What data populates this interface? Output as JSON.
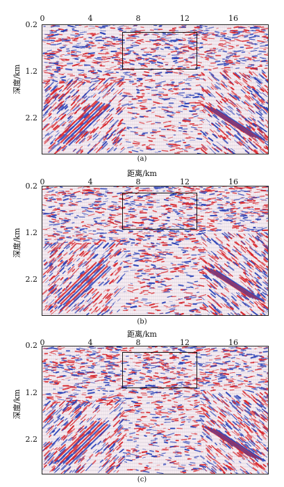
{
  "x_axis_label": "距离/km",
  "y_axis_label": "深度/km",
  "x_ticks": [
    "0",
    "4",
    "8",
    "12",
    "16"
  ],
  "y_ticks": [
    "0.2",
    "1.2",
    "2.2"
  ],
  "panels": [
    {
      "id": "a",
      "caption": "(a)"
    },
    {
      "id": "b",
      "caption": "(b)"
    },
    {
      "id": "c",
      "caption": "(c)"
    }
  ],
  "colors": {
    "positive": "#d8262c",
    "negative": "#2c43b8",
    "trace": "#7a5a8c"
  }
}
